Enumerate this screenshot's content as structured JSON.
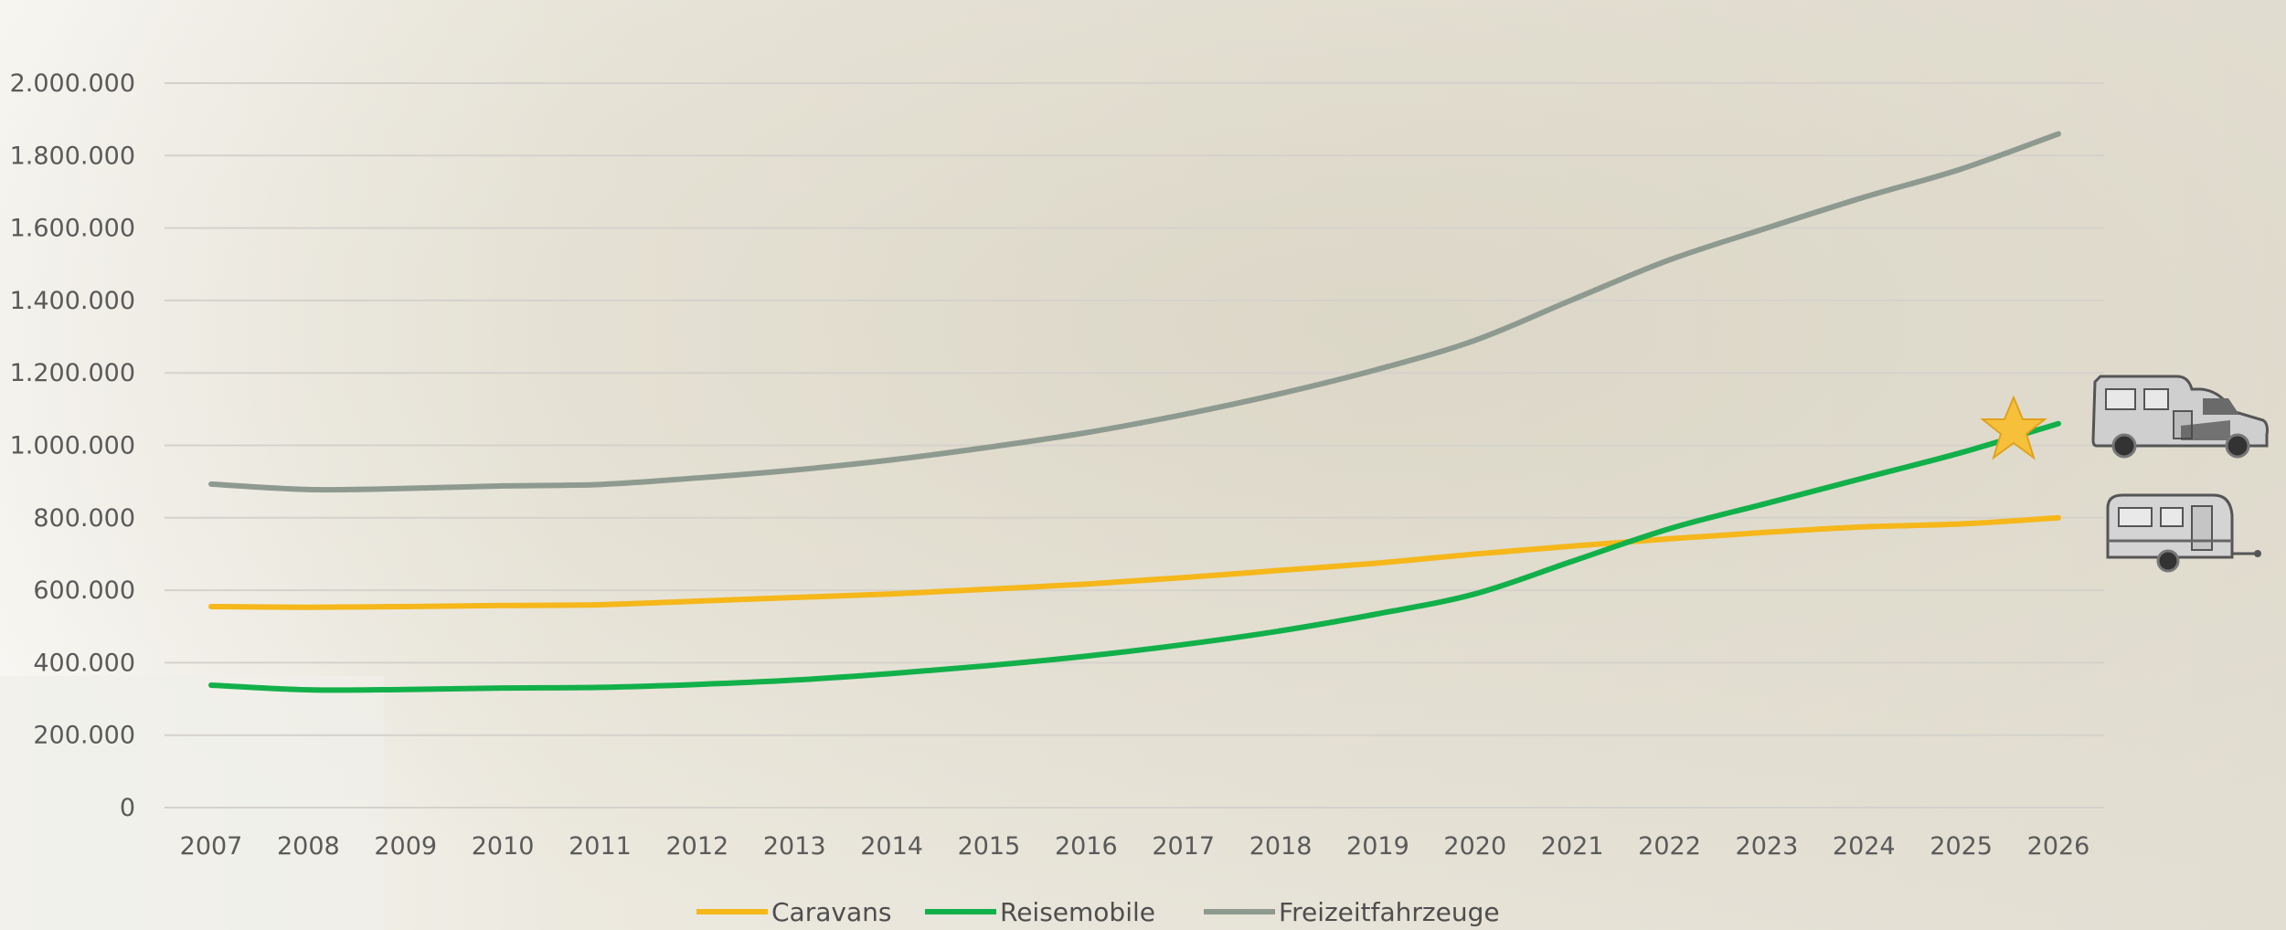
{
  "chart_data": {
    "type": "line",
    "title": "",
    "xlabel": "",
    "ylabel": "",
    "x": [
      "2007",
      "2008",
      "2009",
      "2010",
      "2011",
      "2012",
      "2013",
      "2014",
      "2015",
      "2016",
      "2017",
      "2018",
      "2019",
      "2020",
      "2021",
      "2022",
      "2023",
      "2024",
      "2025",
      "2026"
    ],
    "ylim": [
      0,
      2000000
    ],
    "yticks": [
      0,
      200000,
      400000,
      600000,
      800000,
      1000000,
      1200000,
      1400000,
      1600000,
      1800000,
      2000000
    ],
    "ytick_labels": [
      "0",
      "200.000",
      "400.000",
      "600.000",
      "800.000",
      "1.000.000",
      "1.200.000",
      "1.400.000",
      "1.600.000",
      "1.800.000",
      "2.000.000"
    ],
    "grid": true,
    "legend_position": "bottom",
    "series": [
      {
        "name": "Caravans",
        "color": "#f5b71a",
        "values": [
          555000,
          553000,
          555000,
          558000,
          560000,
          570000,
          580000,
          590000,
          603000,
          617000,
          635000,
          655000,
          675000,
          700000,
          722000,
          742000,
          760000,
          775000,
          783000,
          800000
        ]
      },
      {
        "name": "Reisemobile",
        "color": "#12b04a",
        "values": [
          338000,
          325000,
          326000,
          330000,
          332000,
          340000,
          352000,
          370000,
          392000,
          418000,
          450000,
          488000,
          535000,
          590000,
          680000,
          770000,
          840000,
          910000,
          980000,
          1060000
        ]
      },
      {
        "name": "Freizeitfahrzeuge",
        "color": "#8e9a90",
        "values": [
          893000,
          878000,
          881000,
          888000,
          892000,
          910000,
          932000,
          960000,
          995000,
          1035000,
          1085000,
          1143000,
          1210000,
          1290000,
          1402000,
          1512000,
          1600000,
          1685000,
          1763000,
          1860000
        ]
      }
    ],
    "icons": [
      "star-icon",
      "motorhome-icon",
      "caravan-icon"
    ]
  }
}
